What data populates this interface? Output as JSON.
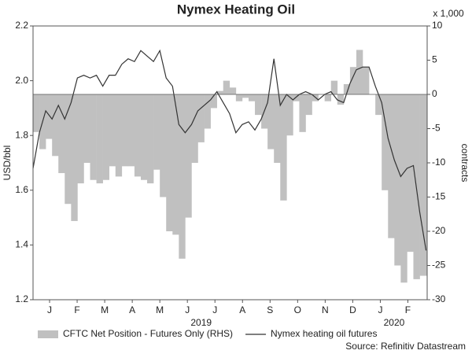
{
  "chart_data": {
    "type": "combo",
    "title": "Nymex Heating Oil",
    "y_label": "USD/bbl",
    "y2_label": "contracts",
    "y2_unit": "x 1,000",
    "source": "Source: Refinitiv Datastream",
    "xlim": [
      -0.1,
      14.2
    ],
    "xticks": [
      {
        "value": 0.5,
        "label": "J"
      },
      {
        "value": 1.5,
        "label": "F"
      },
      {
        "value": 2.5,
        "label": "M"
      },
      {
        "value": 3.5,
        "label": "A"
      },
      {
        "value": 4.5,
        "label": "M"
      },
      {
        "value": 5.5,
        "label": "J"
      },
      {
        "value": 6.5,
        "label": "J"
      },
      {
        "value": 7.5,
        "label": "A"
      },
      {
        "value": 8.5,
        "label": "S"
      },
      {
        "value": 9.5,
        "label": "O"
      },
      {
        "value": 10.5,
        "label": "N"
      },
      {
        "value": 11.5,
        "label": "D"
      },
      {
        "value": 12.5,
        "label": "J"
      },
      {
        "value": 13.5,
        "label": "F"
      }
    ],
    "x_year_ticks": [
      {
        "value": 6,
        "label": "2019"
      },
      {
        "value": 13,
        "label": "2020"
      }
    ],
    "ylim": [
      1.2,
      2.2
    ],
    "yticks": [
      1.2,
      1.4,
      1.6,
      1.8,
      {
        "value": 2,
        "label": "2.0"
      },
      2.2
    ],
    "y2lim": [
      -30,
      10
    ],
    "y2ticks": [
      -30,
      -25,
      -20,
      -15,
      -10,
      -5,
      0,
      5,
      10
    ],
    "x": [
      -0.1,
      0.13,
      0.36,
      0.59,
      0.82,
      1.05,
      1.28,
      1.51,
      1.74,
      1.97,
      2.2,
      2.43,
      2.66,
      2.89,
      3.12,
      3.35,
      3.58,
      3.81,
      4.04,
      4.27,
      4.5,
      4.73,
      4.96,
      5.19,
      5.42,
      5.65,
      5.88,
      6.11,
      6.34,
      6.57,
      6.8,
      7.03,
      7.26,
      7.49,
      7.72,
      7.95,
      8.18,
      8.41,
      8.64,
      8.87,
      9.1,
      9.33,
      9.56,
      9.79,
      10.02,
      10.25,
      10.48,
      10.71,
      10.94,
      11.17,
      11.4,
      11.63,
      11.86,
      12.09,
      12.32,
      12.55,
      12.78,
      13.01,
      13.24,
      13.47,
      13.7,
      13.93,
      14.16
    ],
    "series": [
      {
        "name": "CFTC Net Position - Futures Only (RHS)",
        "style": "step",
        "axis": "y2",
        "color": "#c0c0c0",
        "values": [
          -5.5,
          -8,
          -6.5,
          -9,
          -11.5,
          -16,
          -18.5,
          -13,
          -10,
          -12.5,
          -13,
          -12.5,
          -10.5,
          -12,
          -10.5,
          -10.5,
          -12,
          -12.5,
          -13,
          -11,
          -15,
          -20,
          -20.5,
          -24,
          -18,
          -10,
          -7,
          -5,
          -2,
          0.5,
          2,
          1,
          -1,
          -0.5,
          -1,
          -3,
          -5,
          -8,
          -10,
          -15.5,
          -6,
          -1,
          -5.5,
          -3,
          -1,
          0,
          -1,
          2,
          -1.5,
          1.5,
          4,
          6.5,
          4,
          0,
          -3,
          -14,
          -21,
          -25,
          -27.5,
          -23,
          -27,
          -26.5,
          -26.5
        ]
      },
      {
        "name": "Nymex heating oil futures",
        "style": "line",
        "color": "#333333",
        "values": [
          1.68,
          1.81,
          1.89,
          1.86,
          1.91,
          1.86,
          1.92,
          2.01,
          2.02,
          2.01,
          2.02,
          1.98,
          2.02,
          2.02,
          2.06,
          2.08,
          2.07,
          2.11,
          2.09,
          2.07,
          2.11,
          2.01,
          1.98,
          1.84,
          1.81,
          1.84,
          1.89,
          1.91,
          1.93,
          1.96,
          1.92,
          1.88,
          1.81,
          1.84,
          1.85,
          1.82,
          1.86,
          1.92,
          2.08,
          1.91,
          1.95,
          1.93,
          1.95,
          1.96,
          1.95,
          1.93,
          1.95,
          1.96,
          1.93,
          1.92,
          1.99,
          2.04,
          2.05,
          2.05,
          1.98,
          1.92,
          1.79,
          1.71,
          1.65,
          1.68,
          1.69,
          1.52,
          1.38
        ]
      }
    ]
  }
}
